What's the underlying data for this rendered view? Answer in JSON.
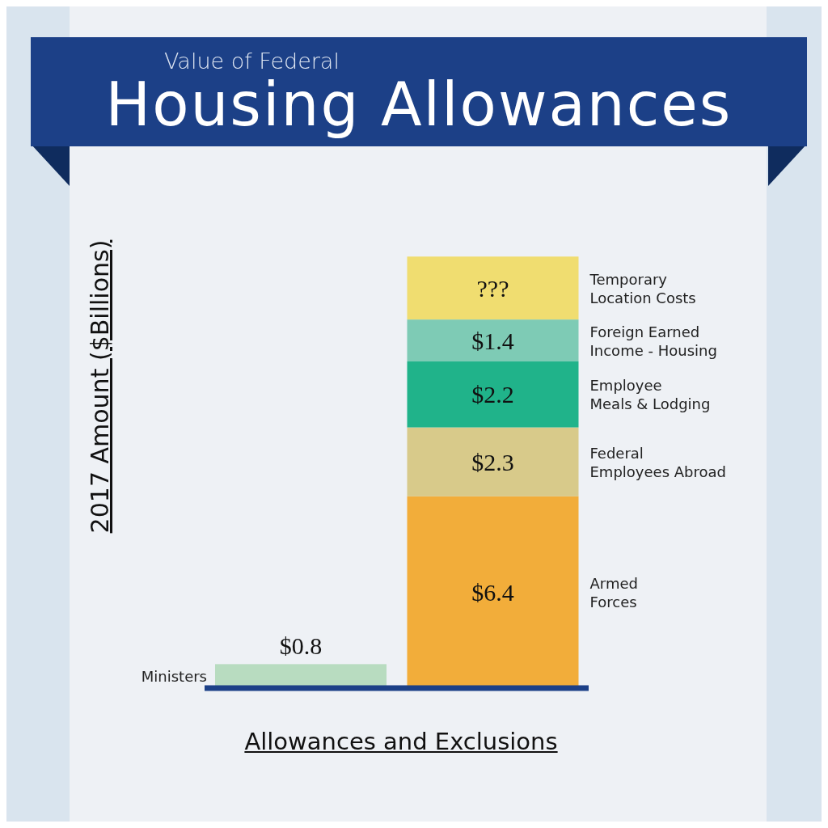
{
  "chart_data": {
    "type": "bar",
    "title": "Housing Allowances",
    "subtitle": "Value of Federal",
    "xlabel": "Allowances and Exclusions",
    "ylabel": "2017 Amount ($Billions)",
    "categories": [
      null,
      null
    ],
    "stacked": true,
    "grid": false,
    "legend": false,
    "series": [
      {
        "name": "Ministers",
        "color": "#b8dcc0",
        "values": [
          0.8,
          null
        ],
        "value_labels": [
          "$0.8",
          null
        ]
      },
      {
        "name": "Armed\nForces",
        "color": "#f2ad3a",
        "values": [
          null,
          6.4
        ],
        "value_labels": [
          null,
          "$6.4"
        ]
      },
      {
        "name": "Federal\nEmployees Abroad",
        "color": "#d8ca8a",
        "values": [
          null,
          2.3
        ],
        "value_labels": [
          null,
          "$2.3"
        ]
      },
      {
        "name": "Employee\nMeals & Lodging",
        "color": "#20b38a",
        "values": [
          null,
          2.2
        ],
        "value_labels": [
          null,
          "$2.2"
        ]
      },
      {
        "name": "Foreign Earned\nIncome - Housing",
        "color": "#7ecbb5",
        "values": [
          null,
          1.4
        ],
        "value_labels": [
          null,
          "$1.4"
        ]
      },
      {
        "name": "Temporary\nLocation Costs",
        "color": "#f0dd70",
        "values": [
          null,
          2.1
        ],
        "value_labels": [
          null,
          "???"
        ]
      }
    ]
  }
}
